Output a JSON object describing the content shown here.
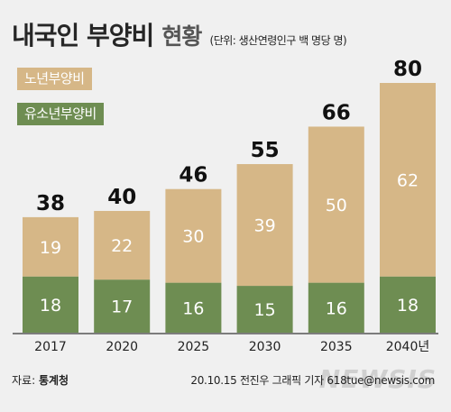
{
  "title": "내국인 부양비",
  "subtitle": "현황",
  "unit": "(단위: 생산연령인구 백 명당 명)",
  "legend": [
    {
      "label": "노년부양비",
      "color": "#d6b787"
    },
    {
      "label": "유소년부양비",
      "color": "#6e8d52"
    }
  ],
  "colors": {
    "elderly": "#d6b787",
    "youth": "#6e8d52",
    "axis": "#555555"
  },
  "chart_data": {
    "type": "bar",
    "stacked": true,
    "categories": [
      "2017",
      "2020",
      "2025",
      "2030",
      "2035",
      "2040년"
    ],
    "series": [
      {
        "name": "유소년부양비",
        "values": [
          18,
          17,
          16,
          15,
          16,
          18
        ]
      },
      {
        "name": "노년부양비",
        "values": [
          19,
          22,
          30,
          39,
          50,
          62
        ]
      }
    ],
    "totals": [
      38,
      40,
      46,
      55,
      66,
      80
    ],
    "title": "내국인 부양비 현황",
    "ylim": [
      0,
      80
    ]
  },
  "footer": {
    "source_prefix": "자료: ",
    "source_name": "통계청",
    "credit": "20.10.15 전진우 그래픽 기자 618tue@newsis.com",
    "watermark": "NEWSIS"
  }
}
